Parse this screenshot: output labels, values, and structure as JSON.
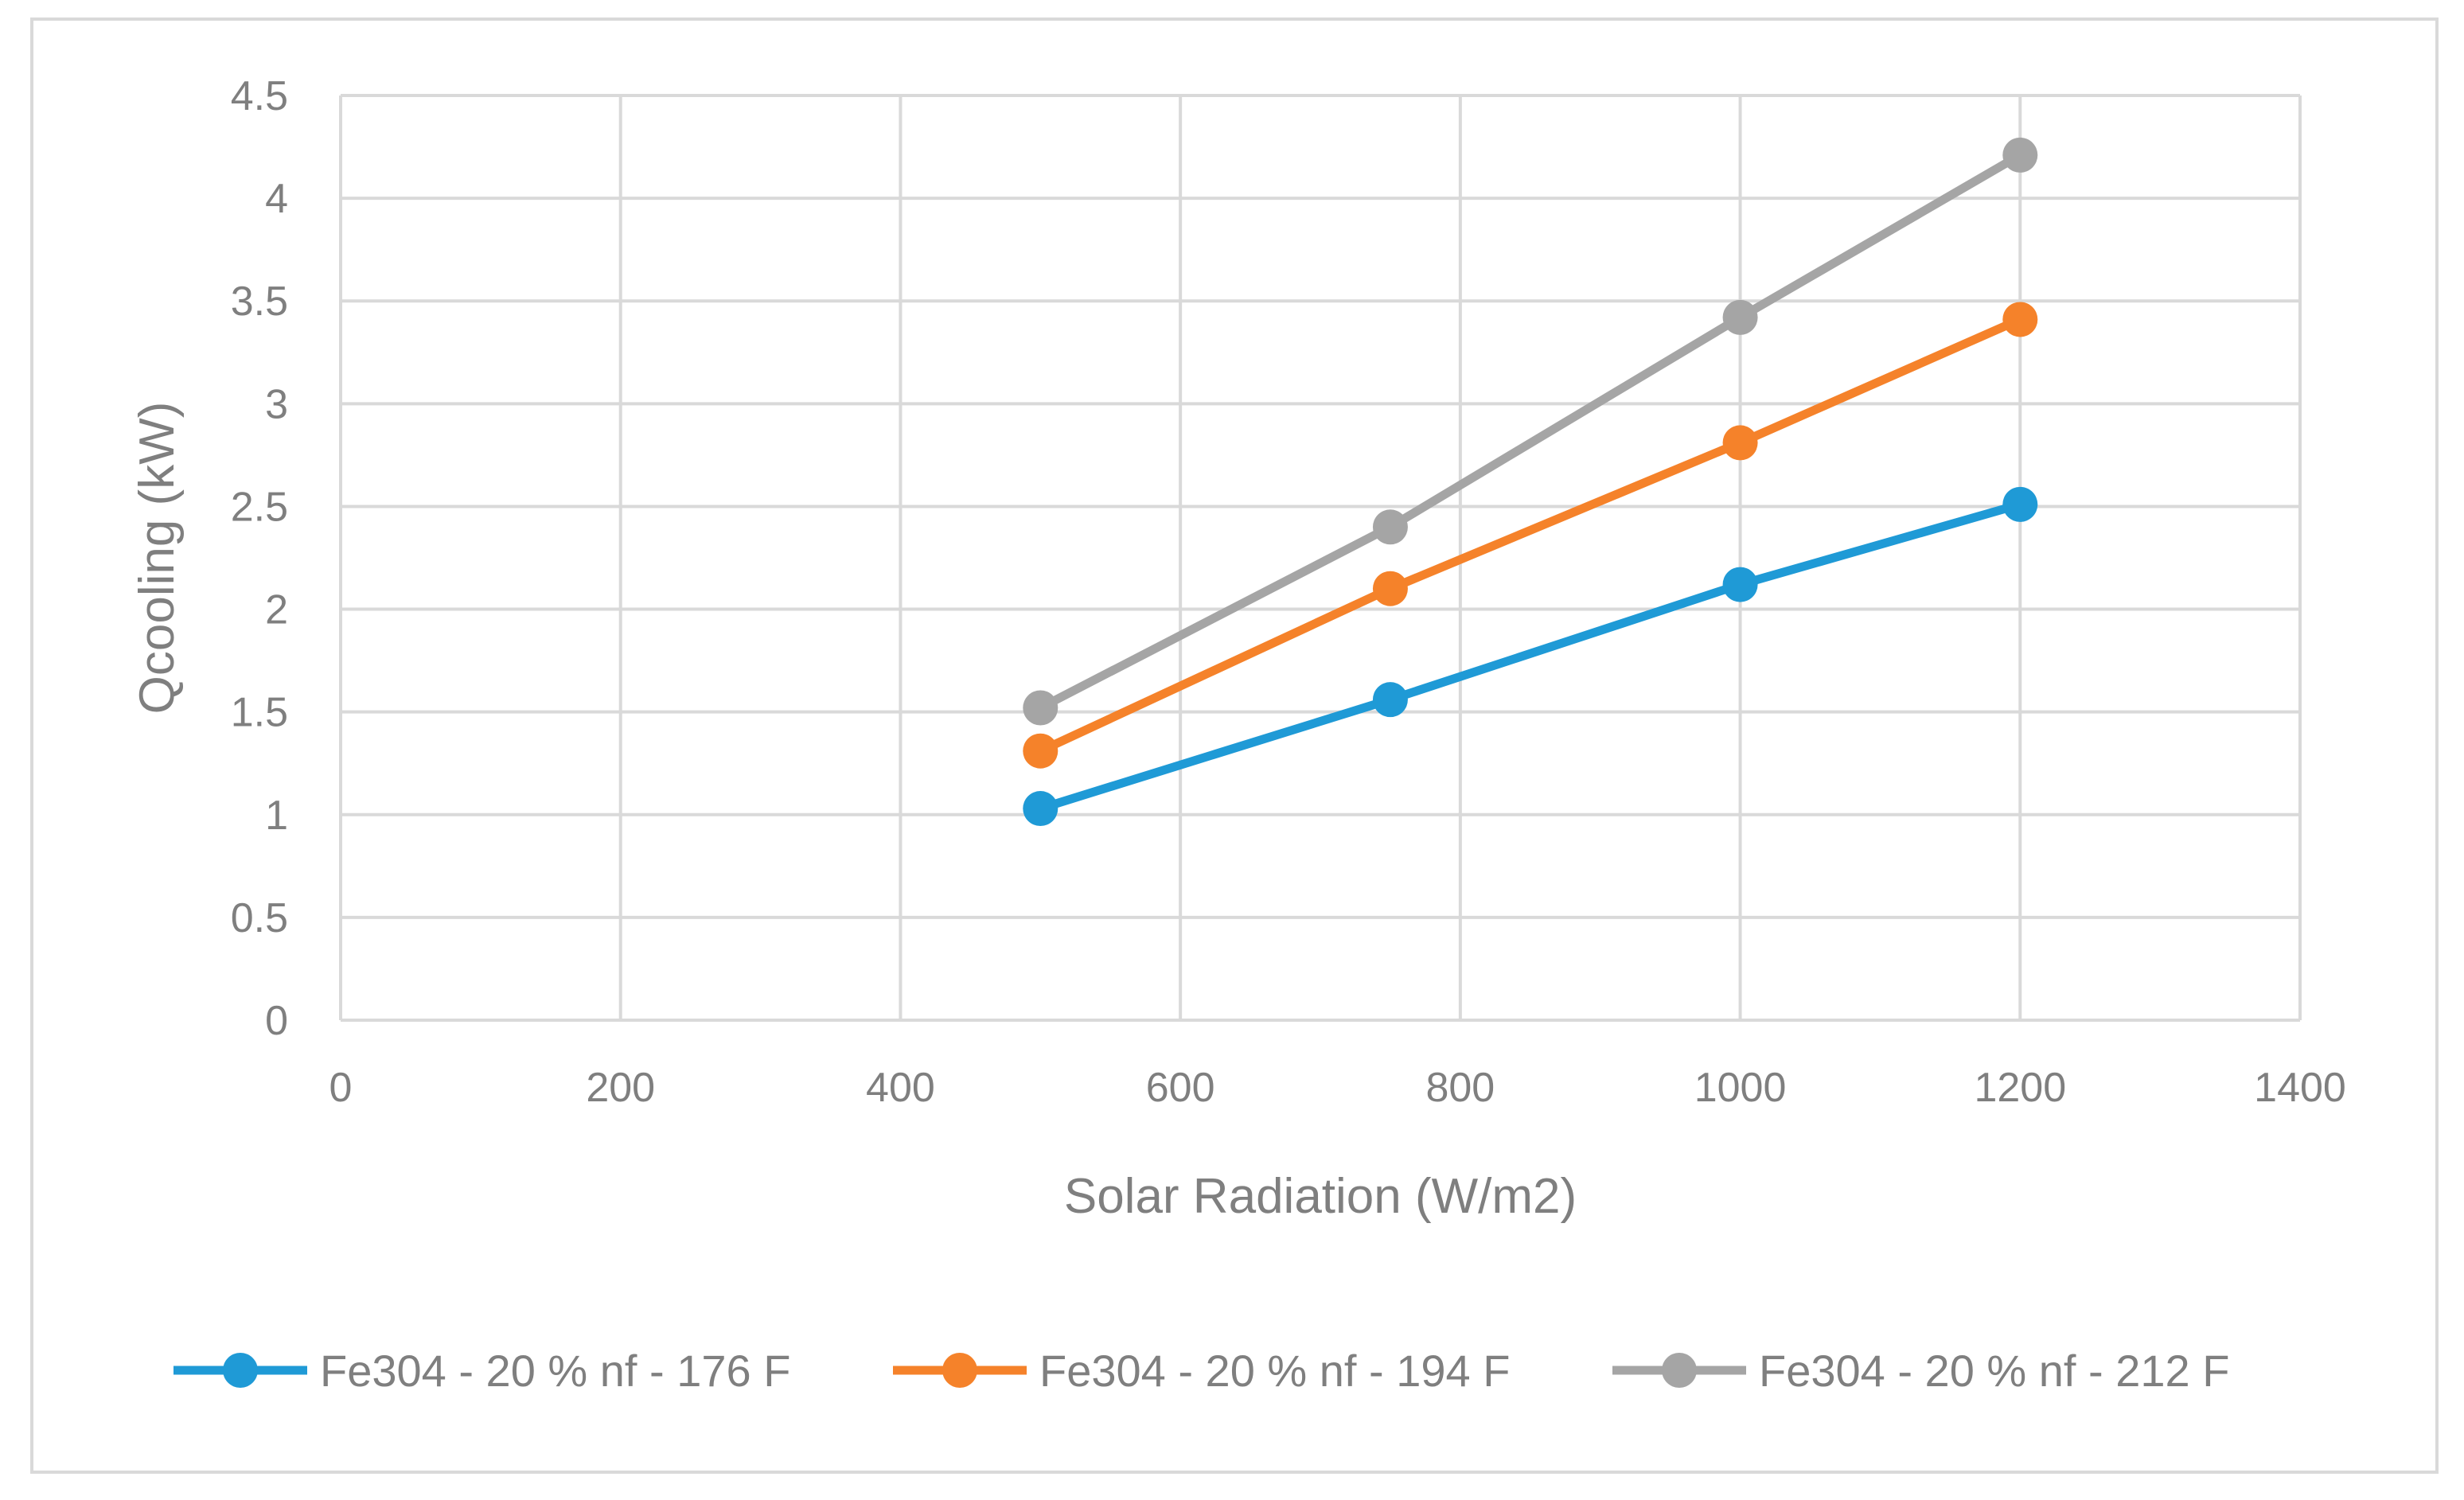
{
  "chart_data": {
    "type": "line",
    "title": "",
    "xlabel": "Solar Radiation (W/m2)",
    "ylabel": "Qcooling (kW)",
    "xlim": [
      0,
      1400
    ],
    "ylim": [
      0,
      4.5
    ],
    "x_ticks": [
      0,
      200,
      400,
      600,
      800,
      1000,
      1200,
      1400
    ],
    "y_ticks": [
      0,
      0.5,
      1,
      1.5,
      2,
      2.5,
      3,
      3.5,
      4,
      4.5
    ],
    "x_tick_labels": [
      "0",
      "200",
      "400",
      "600",
      "800",
      "1000",
      "1200",
      "1400"
    ],
    "y_tick_labels": [
      "0",
      "0.5",
      "1",
      "1.5",
      "2",
      "2.5",
      "3",
      "3.5",
      "4",
      "4.5"
    ],
    "grid": true,
    "legend_position": "bottom",
    "x": [
      500,
      750,
      1000,
      1200
    ],
    "series": [
      {
        "name": "Fe304 - 20 % nf - 176 F",
        "color": "#1f9ad6",
        "values": [
          1.03,
          1.56,
          2.12,
          2.51
        ]
      },
      {
        "name": "Fe304 - 20 % nf - 194 F",
        "color": "#f5822a",
        "values": [
          1.31,
          2.1,
          2.81,
          3.41
        ]
      },
      {
        "name": "Fe304 - 20 % nf - 212 F",
        "color": "#a5a5a5",
        "values": [
          1.52,
          2.4,
          3.42,
          4.21
        ]
      }
    ],
    "grid_color": "#d9d9d9",
    "frame_color": "#d9d9d9"
  }
}
